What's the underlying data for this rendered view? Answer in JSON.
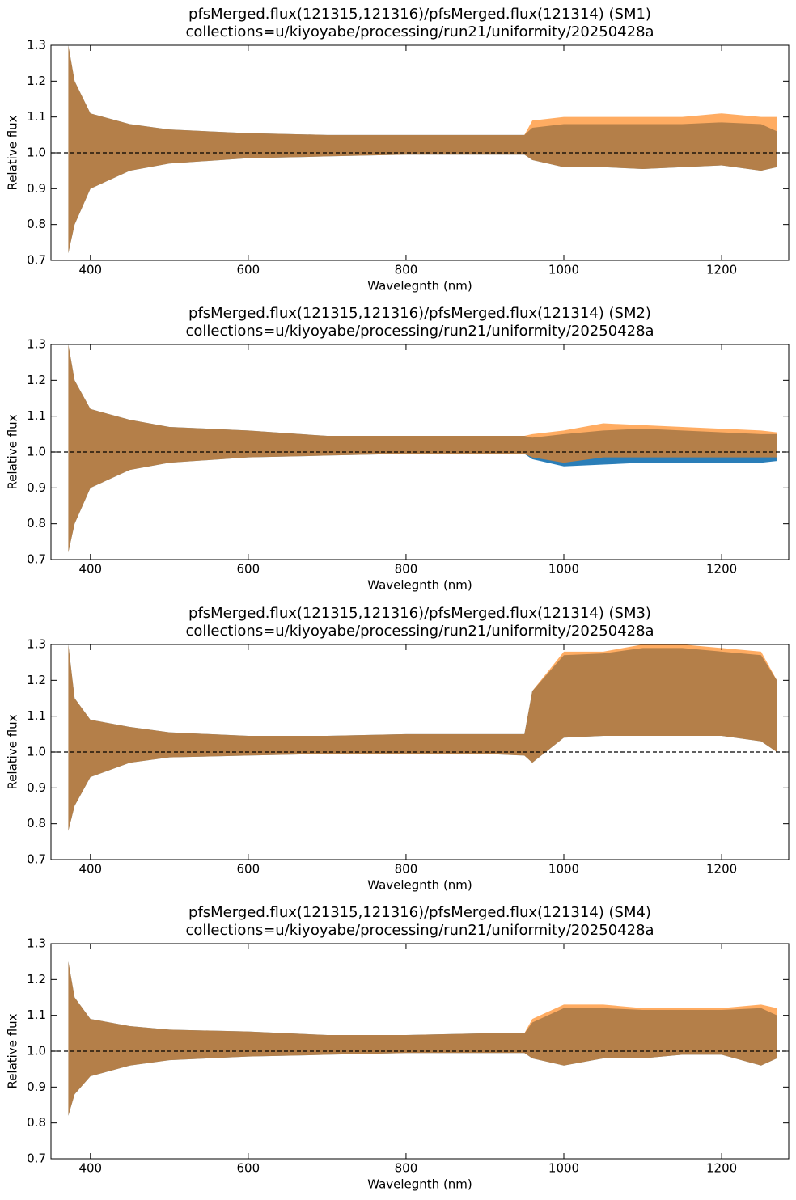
{
  "chart_data": [
    {
      "type": "band",
      "title": "pfsMerged.flux(121315,121316)/pfsMerged.flux(121314) (SM1)",
      "subtitle": "collections=u/kiyoyabe/processing/run21/uniformity/20250428a",
      "x_label": "Wavelegnth (nm)",
      "y_label": "Relative flux",
      "x": [
        372,
        380,
        400,
        450,
        500,
        600,
        700,
        800,
        900,
        950,
        960,
        1000,
        1050,
        1100,
        1150,
        1200,
        1250,
        1270
      ],
      "series": [
        {
          "color": "#1f77b4",
          "upper": [
            1.3,
            1.2,
            1.11,
            1.08,
            1.065,
            1.055,
            1.05,
            1.05,
            1.05,
            1.05,
            1.07,
            1.08,
            1.08,
            1.08,
            1.08,
            1.085,
            1.08,
            1.06
          ],
          "lower": [
            0.72,
            0.8,
            0.9,
            0.95,
            0.97,
            0.985,
            0.99,
            0.995,
            0.995,
            0.995,
            0.98,
            0.96,
            0.96,
            0.955,
            0.96,
            0.965,
            0.95,
            0.96
          ]
        },
        {
          "color": "#ff7f0e",
          "upper": [
            1.3,
            1.2,
            1.11,
            1.08,
            1.065,
            1.055,
            1.05,
            1.05,
            1.05,
            1.05,
            1.09,
            1.1,
            1.1,
            1.1,
            1.1,
            1.11,
            1.1,
            1.1
          ],
          "lower": [
            0.72,
            0.8,
            0.9,
            0.95,
            0.97,
            0.985,
            0.99,
            0.995,
            0.995,
            0.995,
            0.98,
            0.96,
            0.96,
            0.955,
            0.96,
            0.965,
            0.95,
            0.96
          ]
        }
      ],
      "reference_line": 1,
      "xlim": [
        350,
        1285
      ],
      "xticks": [
        400,
        600,
        800,
        1000,
        1200
      ],
      "ylim": [
        0.7,
        1.3
      ],
      "yticks": [
        0.7,
        0.8,
        0.9,
        {
          "value": 1,
          "label": "1.0"
        },
        1.1,
        1.2,
        1.3
      ]
    },
    {
      "type": "band",
      "title": "pfsMerged.flux(121315,121316)/pfsMerged.flux(121314) (SM2)",
      "subtitle": "collections=u/kiyoyabe/processing/run21/uniformity/20250428a",
      "x_label": "Wavelegnth (nm)",
      "y_label": "Relative flux",
      "x": [
        372,
        380,
        400,
        450,
        500,
        600,
        700,
        800,
        900,
        950,
        960,
        1000,
        1050,
        1100,
        1150,
        1200,
        1250,
        1270
      ],
      "series": [
        {
          "color": "#1f77b4",
          "upper": [
            1.3,
            1.2,
            1.12,
            1.09,
            1.07,
            1.06,
            1.045,
            1.045,
            1.045,
            1.045,
            1.04,
            1.05,
            1.06,
            1.065,
            1.06,
            1.055,
            1.05,
            1.05
          ],
          "lower": [
            0.72,
            0.8,
            0.9,
            0.95,
            0.97,
            0.985,
            0.99,
            0.995,
            0.995,
            0.995,
            0.98,
            0.96,
            0.965,
            0.97,
            0.97,
            0.97,
            0.97,
            0.975
          ]
        },
        {
          "color": "#ff7f0e",
          "upper": [
            1.3,
            1.2,
            1.12,
            1.09,
            1.07,
            1.06,
            1.045,
            1.045,
            1.045,
            1.045,
            1.05,
            1.06,
            1.08,
            1.075,
            1.07,
            1.065,
            1.06,
            1.055
          ],
          "lower": [
            0.72,
            0.8,
            0.9,
            0.95,
            0.97,
            0.985,
            0.99,
            0.995,
            0.995,
            0.995,
            0.985,
            0.97,
            0.985,
            0.985,
            0.985,
            0.985,
            0.985,
            0.985
          ]
        }
      ],
      "reference_line": 1,
      "xlim": [
        350,
        1285
      ],
      "xticks": [
        400,
        600,
        800,
        1000,
        1200
      ],
      "ylim": [
        0.7,
        1.3
      ],
      "yticks": [
        0.7,
        0.8,
        0.9,
        {
          "value": 1,
          "label": "1.0"
        },
        1.1,
        1.2,
        1.3
      ]
    },
    {
      "type": "band",
      "title": "pfsMerged.flux(121315,121316)/pfsMerged.flux(121314) (SM3)",
      "subtitle": "collections=u/kiyoyabe/processing/run21/uniformity/20250428a",
      "x_label": "Wavelegnth (nm)",
      "y_label": "Relative flux",
      "x": [
        372,
        380,
        400,
        450,
        500,
        600,
        700,
        800,
        900,
        950,
        960,
        1000,
        1050,
        1100,
        1150,
        1200,
        1250,
        1270
      ],
      "series": [
        {
          "color": "#1f77b4",
          "upper": [
            1.3,
            1.15,
            1.09,
            1.07,
            1.055,
            1.045,
            1.045,
            1.05,
            1.05,
            1.05,
            1.17,
            1.27,
            1.275,
            1.29,
            1.29,
            1.28,
            1.27,
            1.2
          ],
          "lower": [
            0.78,
            0.85,
            0.93,
            0.97,
            0.985,
            0.99,
            0.995,
            0.995,
            0.995,
            0.99,
            0.97,
            1.04,
            1.045,
            1.045,
            1.045,
            1.045,
            1.03,
            1.0
          ]
        },
        {
          "color": "#ff7f0e",
          "upper": [
            1.3,
            1.15,
            1.09,
            1.07,
            1.055,
            1.045,
            1.045,
            1.05,
            1.05,
            1.05,
            1.17,
            1.28,
            1.28,
            1.3,
            1.3,
            1.29,
            1.28,
            1.2
          ],
          "lower": [
            0.78,
            0.85,
            0.93,
            0.97,
            0.985,
            0.99,
            0.995,
            0.995,
            0.995,
            0.99,
            0.97,
            1.04,
            1.045,
            1.045,
            1.045,
            1.045,
            1.03,
            1.0
          ]
        }
      ],
      "reference_line": 1,
      "xlim": [
        350,
        1285
      ],
      "xticks": [
        400,
        600,
        800,
        1000,
        1200
      ],
      "ylim": [
        0.7,
        1.3
      ],
      "yticks": [
        0.7,
        0.8,
        0.9,
        {
          "value": 1,
          "label": "1.0"
        },
        1.1,
        1.2,
        1.3
      ]
    },
    {
      "type": "band",
      "title": "pfsMerged.flux(121315,121316)/pfsMerged.flux(121314) (SM4)",
      "subtitle": "collections=u/kiyoyabe/processing/run21/uniformity/20250428a",
      "x_label": "Wavelegnth (nm)",
      "y_label": "Relative flux",
      "x": [
        372,
        380,
        400,
        450,
        500,
        600,
        700,
        800,
        900,
        950,
        960,
        1000,
        1050,
        1100,
        1150,
        1200,
        1250,
        1270
      ],
      "series": [
        {
          "color": "#1f77b4",
          "upper": [
            1.25,
            1.15,
            1.09,
            1.07,
            1.06,
            1.055,
            1.045,
            1.045,
            1.05,
            1.05,
            1.08,
            1.12,
            1.12,
            1.115,
            1.115,
            1.115,
            1.12,
            1.1
          ],
          "lower": [
            0.82,
            0.88,
            0.93,
            0.96,
            0.975,
            0.985,
            0.99,
            0.995,
            0.995,
            0.995,
            0.98,
            0.96,
            0.98,
            0.98,
            0.99,
            0.99,
            0.96,
            0.98
          ]
        },
        {
          "color": "#ff7f0e",
          "upper": [
            1.25,
            1.15,
            1.09,
            1.07,
            1.06,
            1.055,
            1.045,
            1.045,
            1.05,
            1.05,
            1.09,
            1.13,
            1.13,
            1.12,
            1.12,
            1.12,
            1.13,
            1.12
          ],
          "lower": [
            0.82,
            0.88,
            0.93,
            0.96,
            0.975,
            0.985,
            0.99,
            0.995,
            0.995,
            0.995,
            0.98,
            0.96,
            0.98,
            0.98,
            0.99,
            0.99,
            0.96,
            0.98
          ]
        }
      ],
      "reference_line": 1,
      "xlim": [
        350,
        1285
      ],
      "xticks": [
        400,
        600,
        800,
        1000,
        1200
      ],
      "ylim": [
        0.7,
        1.3
      ],
      "yticks": [
        0.7,
        0.8,
        0.9,
        {
          "value": 1,
          "label": "1.0"
        },
        1.1,
        1.2,
        1.3
      ]
    }
  ]
}
